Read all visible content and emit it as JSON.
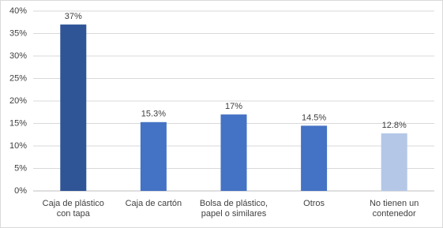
{
  "chart_data": {
    "type": "bar",
    "categories": [
      "Caja de plástico con tapa",
      "Caja de cartón",
      "Bolsa de plástico, papel o similares",
      "Otros",
      "No tienen un contenedor"
    ],
    "values": [
      37,
      15.3,
      17,
      14.5,
      12.8
    ],
    "value_labels": [
      "37%",
      "15.3%",
      "17%",
      "14.5%",
      "12.8%"
    ],
    "colors": [
      "#2f5597",
      "#4472c4",
      "#4472c4",
      "#4472c4",
      "#b4c7e7"
    ],
    "ylim": [
      0,
      40
    ],
    "yticks": [
      {
        "value": 0,
        "label": "0%"
      },
      {
        "value": 5,
        "label": "5%"
      },
      {
        "value": 10,
        "label": "10%"
      },
      {
        "value": 15,
        "label": "15%"
      },
      {
        "value": 20,
        "label": "20%"
      },
      {
        "value": 25,
        "label": "25%"
      },
      {
        "value": 30,
        "label": "30%"
      },
      {
        "value": 35,
        "label": "35%"
      },
      {
        "value": 40,
        "label": "40%"
      }
    ],
    "grid": true
  }
}
